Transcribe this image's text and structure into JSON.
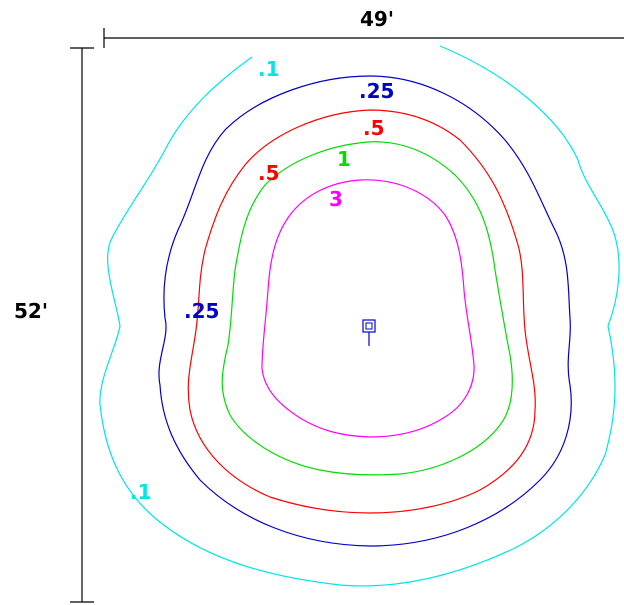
{
  "dimensions": {
    "width_label": "49'",
    "height_label": "52'"
  },
  "contours": [
    {
      "id": "c01",
      "value_label": ".1",
      "color": "#00e5e5"
    },
    {
      "id": "c025",
      "value_label": ".25",
      "color": "#0000c8"
    },
    {
      "id": "c05",
      "value_label": ".5",
      "color": "#ff0000"
    },
    {
      "id": "c1",
      "value_label": "1",
      "color": "#00dd00"
    },
    {
      "id": "c3",
      "value_label": "3",
      "color": "#ff00ff"
    }
  ],
  "labels": {
    "c01_top": ".1",
    "c01_bottom": ".1",
    "c025_top": ".25",
    "c025_left": ".25",
    "c05_top": ".5",
    "c05_left": ".5",
    "c1_top": "1",
    "c3_top": "3"
  },
  "fixture": {
    "icon": "luminaire-square-icon",
    "color": "#0000c8"
  }
}
